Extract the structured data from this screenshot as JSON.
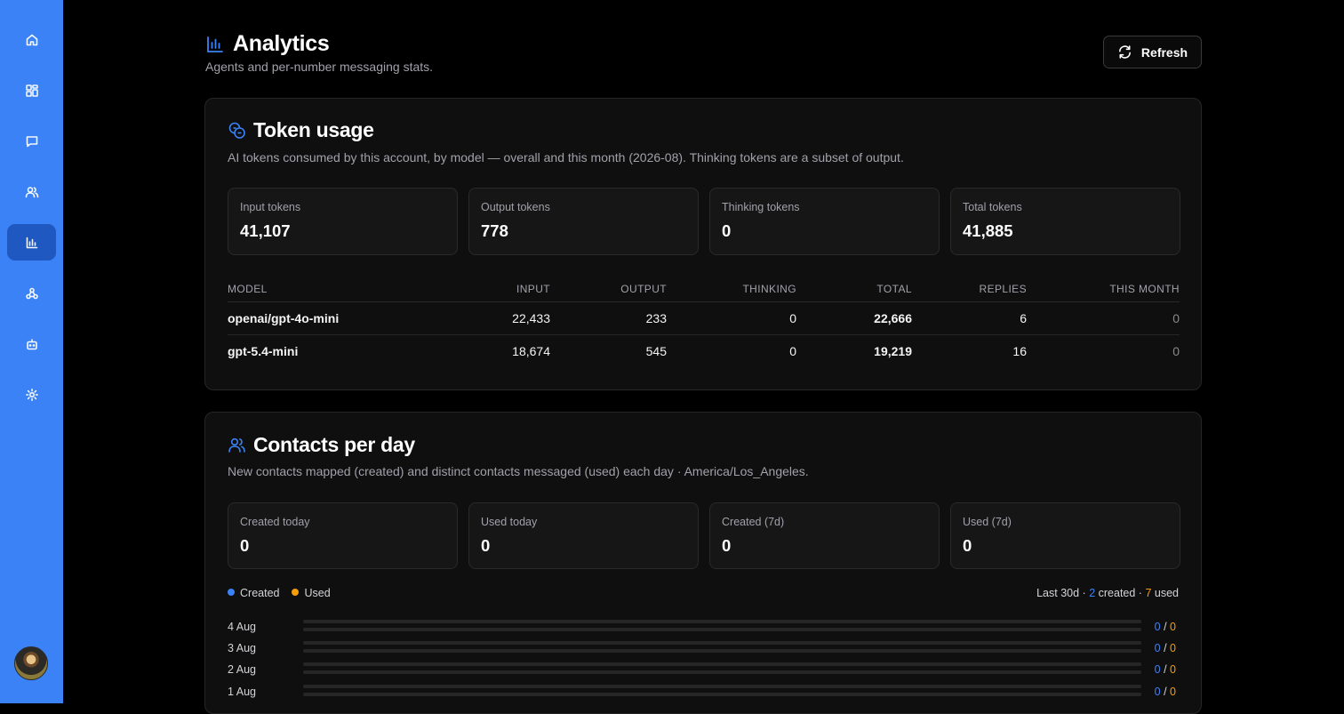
{
  "sidebar": {
    "items": [
      {
        "icon": "home-icon",
        "active": false
      },
      {
        "icon": "dashboard-icon",
        "active": false
      },
      {
        "icon": "chat-icon",
        "active": false
      },
      {
        "icon": "users-icon",
        "active": false
      },
      {
        "icon": "analytics-icon",
        "active": true
      },
      {
        "icon": "webhook-icon",
        "active": false
      },
      {
        "icon": "bot-icon",
        "active": false
      },
      {
        "icon": "gear-icon",
        "active": false
      }
    ],
    "avatar": "user-avatar"
  },
  "header": {
    "title": "Analytics",
    "subtitle": "Agents and per-number messaging stats.",
    "refresh_label": "Refresh"
  },
  "token_usage": {
    "title": "Token usage",
    "description": "AI tokens consumed by this account, by model — overall and this month (2026-08). Thinking tokens are a subset of output.",
    "stats": [
      {
        "label": "Input tokens",
        "value": "41,107"
      },
      {
        "label": "Output tokens",
        "value": "778"
      },
      {
        "label": "Thinking tokens",
        "value": "0"
      },
      {
        "label": "Total tokens",
        "value": "41,885"
      }
    ],
    "columns": [
      "MODEL",
      "INPUT",
      "OUTPUT",
      "THINKING",
      "TOTAL",
      "REPLIES",
      "THIS MONTH"
    ],
    "rows": [
      {
        "model": "openai/gpt-4o-mini",
        "input": "22,433",
        "output": "233",
        "thinking": "0",
        "total": "22,666",
        "replies": "6",
        "this_month": "0"
      },
      {
        "model": "gpt-5.4-mini",
        "input": "18,674",
        "output": "545",
        "thinking": "0",
        "total": "19,219",
        "replies": "16",
        "this_month": "0"
      }
    ]
  },
  "contacts": {
    "title": "Contacts per day",
    "description": "New contacts mapped (created) and distinct contacts messaged (used) each day · America/Los_Angeles.",
    "stats": [
      {
        "label": "Created today",
        "value": "0"
      },
      {
        "label": "Used today",
        "value": "0"
      },
      {
        "label": "Created (7d)",
        "value": "0"
      },
      {
        "label": "Used (7d)",
        "value": "0"
      }
    ],
    "legend": {
      "created": "Created",
      "used": "Used"
    },
    "summary": {
      "prefix": "Last 30d ·",
      "created_count": "2",
      "created_word": "created ·",
      "used_count": "7",
      "used_word": "used"
    },
    "colors": {
      "created": "#3b82f6",
      "used": "#f59e0b"
    },
    "days": [
      {
        "label": "4 Aug",
        "created": "0",
        "sep": "/",
        "used": "0"
      },
      {
        "label": "3 Aug",
        "created": "0",
        "sep": "/",
        "used": "0"
      },
      {
        "label": "2 Aug",
        "created": "0",
        "sep": "/",
        "used": "0"
      },
      {
        "label": "1 Aug",
        "created": "0",
        "sep": "/",
        "used": "0"
      }
    ]
  }
}
